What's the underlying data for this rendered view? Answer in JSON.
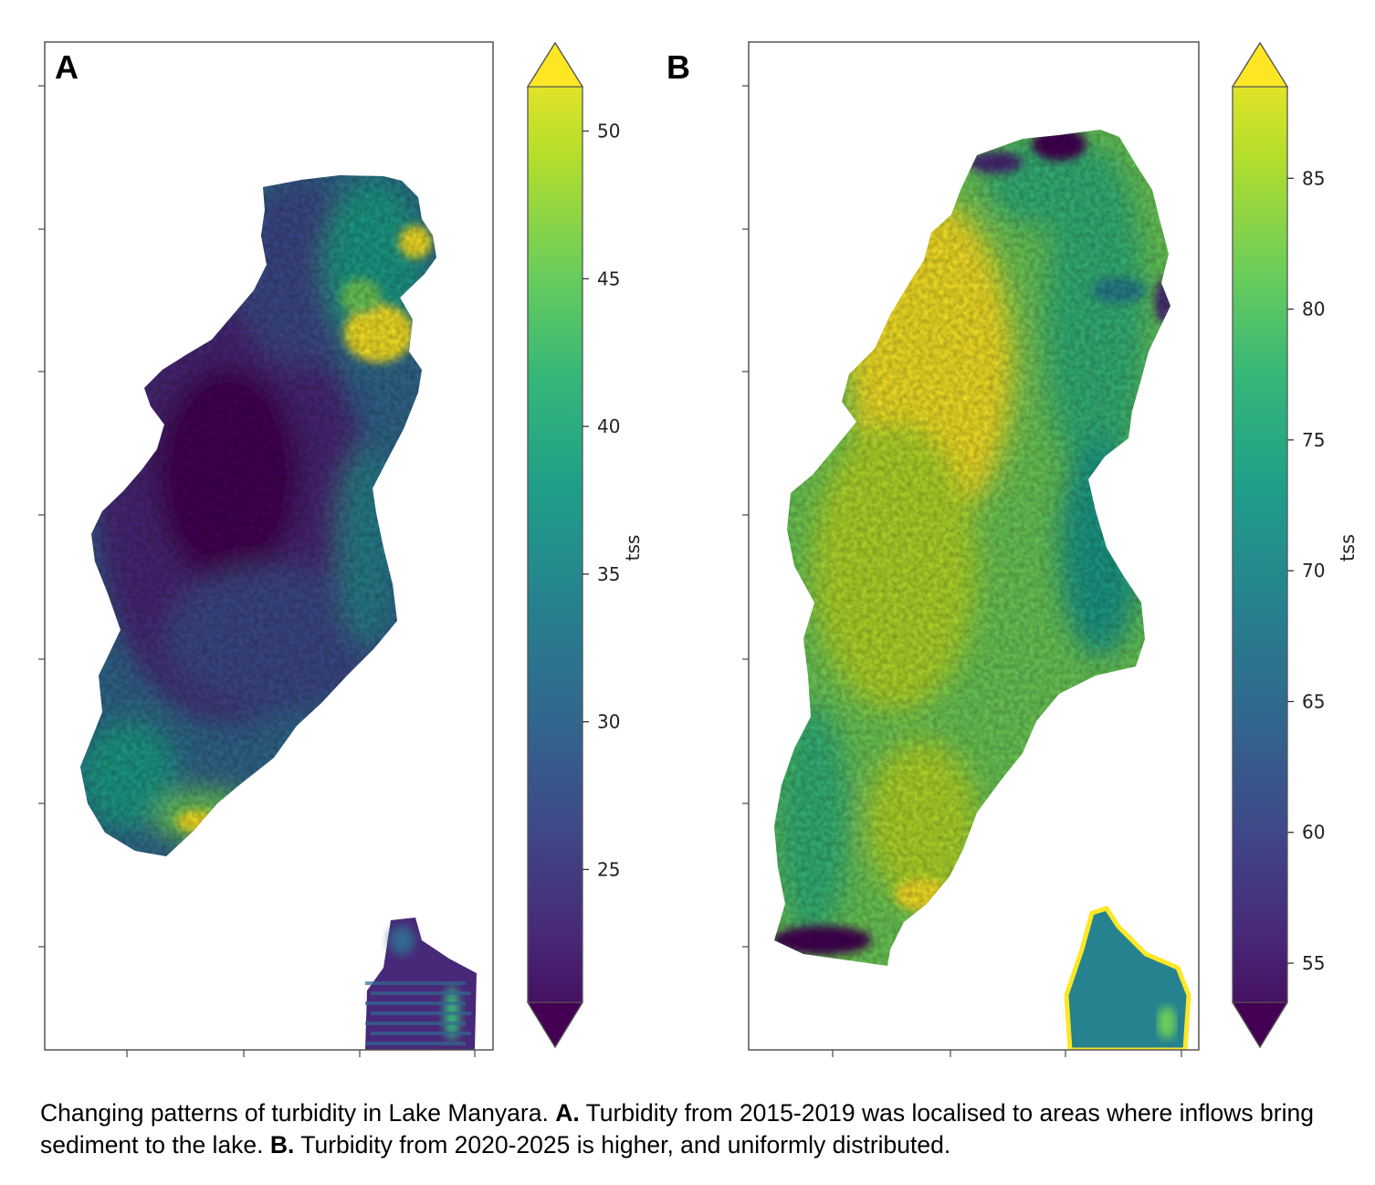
{
  "figure": {
    "colormap": [
      "#440154",
      "#482878",
      "#3e4a89",
      "#31688e",
      "#26828e",
      "#1f9e89",
      "#35b779",
      "#6ece58",
      "#b5de2b",
      "#fde725"
    ],
    "colors": {
      "frame": "#555555",
      "outside": "#ffffff",
      "text": "#000000"
    },
    "panels": [
      {
        "letter": "A",
        "colorbar": {
          "label": "tss",
          "ticks": [
            "25",
            "30",
            "35",
            "40",
            "45",
            "50"
          ],
          "range": [
            20.5,
            51.5
          ],
          "extend": "both"
        }
      },
      {
        "letter": "B",
        "colorbar": {
          "label": "tss",
          "ticks": [
            "55",
            "60",
            "65",
            "70",
            "75",
            "80",
            "85"
          ],
          "range": [
            53.5,
            88.5
          ],
          "extend": "both"
        }
      }
    ]
  },
  "chart_data": [
    {
      "type": "heatmap",
      "panel": "A",
      "title": "",
      "description_period": "2015-2019",
      "variable": "tss",
      "colorbar_label": "tss",
      "colorbar_ticks": [
        25,
        30,
        35,
        40,
        45,
        50
      ],
      "value_range": [
        20.5,
        51.5
      ],
      "colormap": "viridis",
      "colorbar_extend": "both",
      "x_ticks_labels": [],
      "y_ticks_labels": []
    },
    {
      "type": "heatmap",
      "panel": "B",
      "title": "",
      "description_period": "2020-2025",
      "variable": "tss",
      "colorbar_label": "tss",
      "colorbar_ticks": [
        55,
        60,
        65,
        70,
        75,
        80,
        85
      ],
      "value_range": [
        53.5,
        88.5
      ],
      "colormap": "viridis",
      "colorbar_extend": "both",
      "x_ticks_labels": [],
      "y_ticks_labels": []
    }
  ],
  "caption": {
    "p1": "Changing patterns of turbidity in Lake Manyara. ",
    "b1": "A.",
    "p2": " Turbidity from 2015-2019 was localised to areas where inflows bring sediment to the lake. ",
    "b2": "B.",
    "p3": " Turbidity from 2020-2025 is higher, and uniformly distributed."
  }
}
